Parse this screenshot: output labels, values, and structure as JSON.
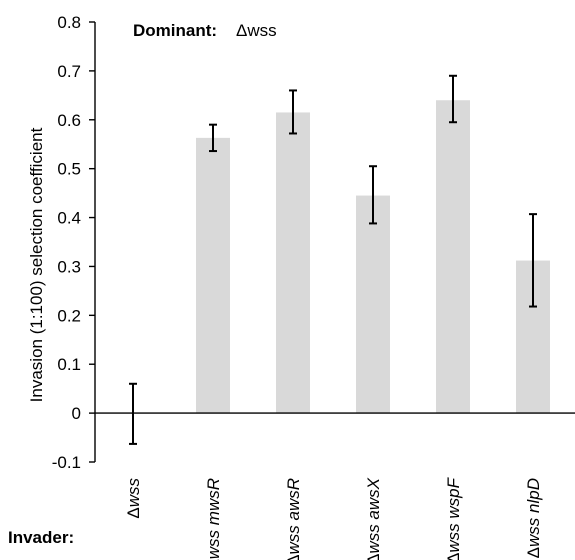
{
  "chart_data": {
    "type": "bar",
    "ylabel": "Invasion (1:100) selection coefficient",
    "ylim": [
      -0.1,
      0.8
    ],
    "yticks": [
      "0.8",
      "0.7",
      "0.6",
      "0.5",
      "0.4",
      "0.3",
      "0.2",
      "0.1",
      "0",
      "-0.1"
    ],
    "grid": false,
    "bar_color": "#d9d9d9",
    "annotation": {
      "dominant_label": "Dominant:",
      "dominant_value": "Δwss"
    },
    "xlabel_prefix": "Invader:",
    "categories": [
      {
        "prefix": "Δ",
        "label": "wss"
      },
      {
        "prefix": "Δ",
        "label": "wss mwsR"
      },
      {
        "prefix": "Δ",
        "label": "wss awsR"
      },
      {
        "prefix": "Δ",
        "label": "wss awsX"
      },
      {
        "prefix": "Δ",
        "label": "wss wspF"
      },
      {
        "prefix": "Δ",
        "label": "wss nlpD"
      }
    ],
    "values": [
      0.0,
      0.563,
      0.615,
      0.445,
      0.64,
      0.312
    ],
    "error_low": [
      -0.063,
      0.536,
      0.572,
      0.388,
      0.595,
      0.218
    ],
    "error_high": [
      0.06,
      0.59,
      0.66,
      0.505,
      0.69,
      0.407
    ]
  }
}
